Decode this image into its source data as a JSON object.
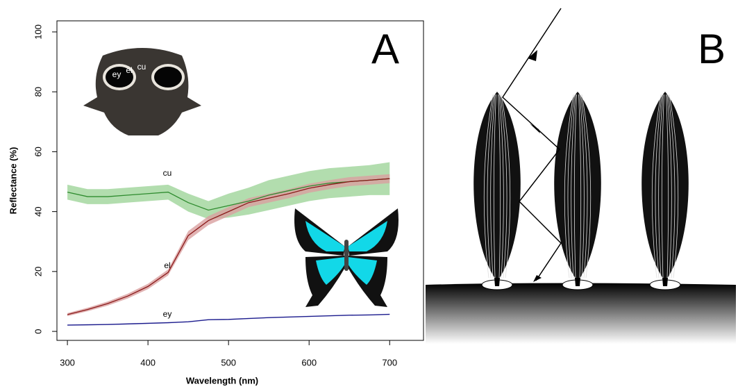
{
  "chart_data": {
    "type": "line",
    "panel_label": "A",
    "x_label": "Wavelength (nm)",
    "y_label": "Reflectance (%)",
    "x": [
      300,
      325,
      350,
      375,
      400,
      425,
      450,
      475,
      500,
      525,
      550,
      575,
      600,
      625,
      650,
      675,
      700
    ],
    "series": [
      {
        "name": "cu",
        "color": "#2e8b2e",
        "band_color": "#9fd49a",
        "values": [
          46.5,
          45,
          45,
          45.5,
          46,
          46.5,
          43,
          40.5,
          42,
          43.5,
          45.5,
          47,
          48.5,
          49.5,
          50,
          50.5,
          51
        ],
        "error": [
          2.5,
          2.5,
          2.5,
          2.5,
          2.5,
          2.5,
          3,
          3,
          4,
          4.5,
          5,
          5,
          5,
          5,
          5,
          5,
          5.5
        ]
      },
      {
        "name": "el",
        "color": "#8b1a1a",
        "band_color": "#d9a0a0",
        "values": [
          5.6,
          7.3,
          9.3,
          11.8,
          15,
          19.7,
          32,
          37,
          40,
          43,
          44.5,
          46,
          47.8,
          49,
          50,
          50.5,
          51
        ],
        "error": [
          0.5,
          0.6,
          0.7,
          0.8,
          0.9,
          1,
          1.5,
          1.5,
          1.5,
          1.5,
          1.5,
          1.5,
          1.5,
          1.5,
          1.5,
          1.5,
          1.5
        ]
      },
      {
        "name": "ey",
        "color": "#1a1a8b",
        "band_color": "#b0b0e0",
        "values": [
          2.1,
          2.2,
          2.3,
          2.5,
          2.7,
          2.9,
          3.2,
          3.9,
          4,
          4.3,
          4.6,
          4.8,
          5,
          5.2,
          5.4,
          5.5,
          5.7
        ],
        "error": [
          0.2,
          0.2,
          0.2,
          0.2,
          0.2,
          0.2,
          0.2,
          0.2,
          0.2,
          0.2,
          0.2,
          0.2,
          0.2,
          0.2,
          0.2,
          0.2,
          0.2
        ]
      }
    ],
    "xlim": [
      287,
      742
    ],
    "ylim": [
      -3,
      103.7
    ],
    "xticks": [
      300,
      400,
      500,
      600,
      700
    ],
    "yticks": [
      0,
      20,
      40,
      60,
      80,
      100
    ],
    "inset_labels": [
      "ey",
      "el",
      "cu"
    ]
  },
  "diagram": {
    "label": "B"
  }
}
